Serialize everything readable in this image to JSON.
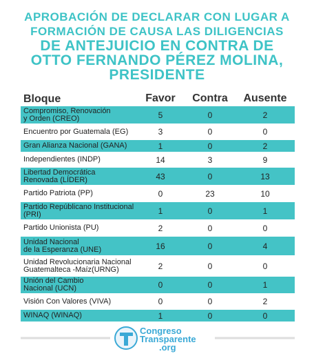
{
  "header": {
    "title_lines": [
      "APROBACIÓN DE DECLARAR CON LUGAR A",
      "FORMACIÓN DE CAUSA LAS DILIGENCIAS",
      "DE ANTEJUICIO EN CONTRA DE",
      "OTTO FERNANDO PÉREZ MOLINA,",
      "PRESIDENTE"
    ]
  },
  "table": {
    "columns": [
      "Bloque",
      "Favor",
      "Contra",
      "Ausente"
    ],
    "rows": [
      [
        "Compromiso, Renovación\ny Orden (CREO)",
        5,
        0,
        2
      ],
      [
        "Encuentro por Guatemala (EG)",
        3,
        0,
        0
      ],
      [
        "Gran Alianza Nacional (GANA)",
        1,
        0,
        2
      ],
      [
        "Independientes (INDP)",
        14,
        3,
        9
      ],
      [
        "Libertad Democrática\nRenovada (LÍDER)",
        43,
        0,
        13
      ],
      [
        "Partido Patriota (PP)",
        0,
        23,
        10
      ],
      [
        "Partido Repúblicano Institucional\n(PRI)",
        1,
        0,
        1
      ],
      [
        "Partido Unionista (PU)",
        2,
        0,
        0
      ],
      [
        "Unidad Nacional\nde la Esperanza  (UNE)",
        16,
        0,
        4
      ],
      [
        "Unidad Revolucionaria Nacional\nGuatemalteca -Maíz(URNG)",
        2,
        0,
        0
      ],
      [
        "Unión del Cambio\nNacional (UCN)",
        0,
        0,
        1
      ],
      [
        "Visión Con Valores (VIVA)",
        0,
        0,
        2
      ],
      [
        "WINAQ (WINAQ)",
        1,
        0,
        0
      ]
    ]
  },
  "footer": {
    "logo_lines": [
      "Congreso",
      "Transparente",
      ".org"
    ]
  }
}
